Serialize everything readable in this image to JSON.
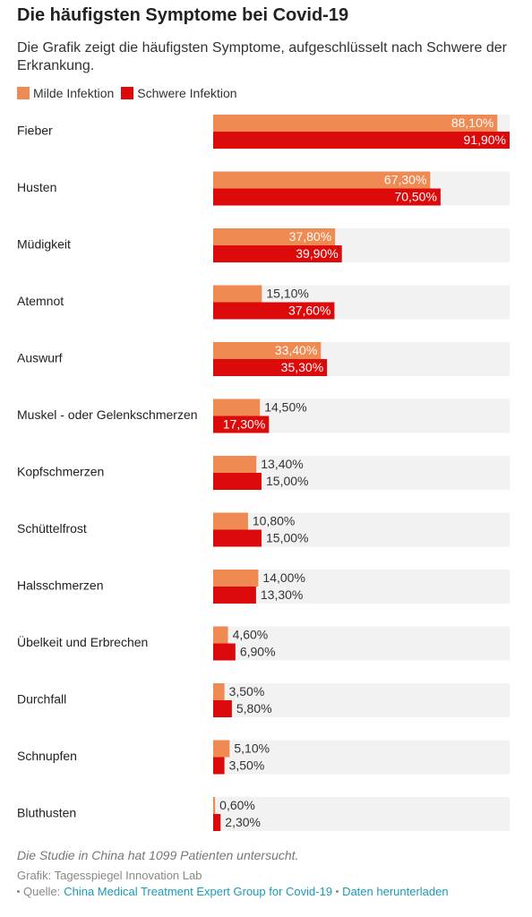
{
  "chart_data": {
    "type": "grouped-bar-horizontal",
    "title": "Die häufigsten Symptome bei Covid-19",
    "subtitle": "Die Grafik zeigt die häufigsten Symptome, aufgeschlüsselt nach Schwere der Erkrankung.",
    "categories": [
      "Fieber",
      "Husten",
      "Müdigkeit",
      "Atemnot",
      "Auswurf",
      "Muskel - oder Gelenkschmerzen",
      "Kopfschmerzen",
      "Schüttelfrost",
      "Halsschmerzen",
      "Übelkeit und Erbrechen",
      "Durchfall",
      "Schnupfen",
      "Bluthusten"
    ],
    "series": [
      {
        "name": "Milde Infektion",
        "color": "#ef8a52",
        "values": [
          88.1,
          67.3,
          37.8,
          15.1,
          33.4,
          14.5,
          13.4,
          10.8,
          14.0,
          4.6,
          3.5,
          5.1,
          0.6
        ],
        "value_labels": [
          "88,10%",
          "67,30%",
          "37,80%",
          "15,10%",
          "33,40%",
          "14,50%",
          "13,40%",
          "10,80%",
          "14,00%",
          "4,60%",
          "3,50%",
          "5,10%",
          "0,60%"
        ]
      },
      {
        "name": "Schwere Infektion",
        "color": "#dc0a0a",
        "values": [
          91.9,
          70.5,
          39.9,
          37.6,
          35.3,
          17.3,
          15.0,
          15.0,
          13.3,
          6.9,
          5.8,
          3.5,
          2.3
        ],
        "value_labels": [
          "91,90%",
          "70,50%",
          "39,90%",
          "37,60%",
          "35,30%",
          "17,30%",
          "15,00%",
          "15,00%",
          "13,30%",
          "6,90%",
          "5,80%",
          "3,50%",
          "2,30%"
        ]
      }
    ],
    "note": "Die Studie in China hat 1099 Patienten untersucht.",
    "credit": "Grafik: Tagesspiegel Innovation Lab",
    "source_label": "Quelle:",
    "source_link": "China Medical Treatment Expert Group for Covid-19",
    "download_link": "Daten herunterladen"
  }
}
